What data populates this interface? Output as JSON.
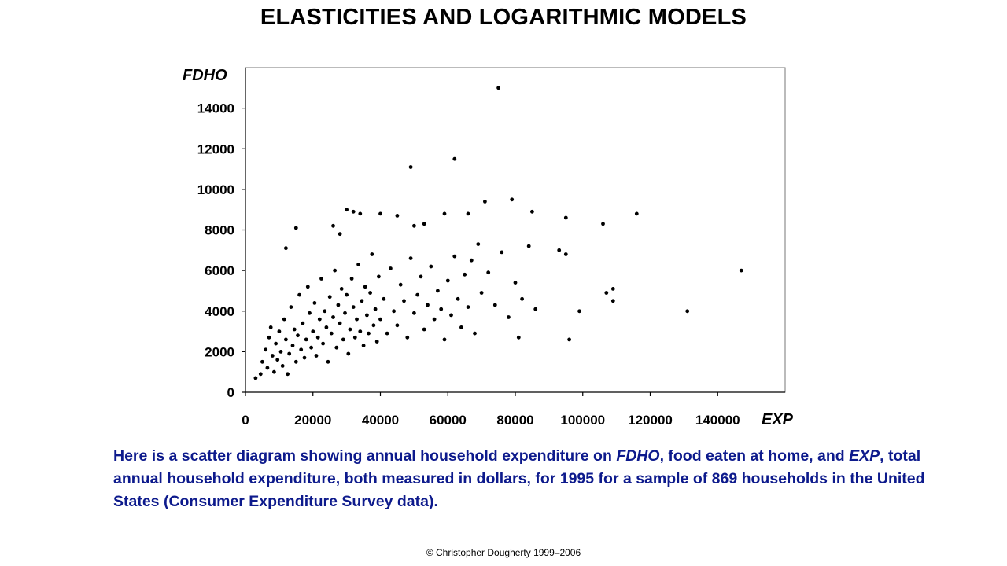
{
  "slide": {
    "title": "ELASTICITIES AND LOGARITHMIC MODELS",
    "caption": {
      "p1": "Here is a scatter diagram showing annual household expenditure on ",
      "t1": "FDHO",
      "p2": ", food eaten at home, and ",
      "t2": "EXP",
      "p3": ", total annual household expenditure, both measured in dollars, for 1995 for a sample of 869 households in the United States (Consumer Expenditure Survey data)."
    },
    "footer": "© Christopher Dougherty 1999–2006"
  },
  "colors": {
    "points": "#000000",
    "caption": "#0d1a8c"
  },
  "chart_data": {
    "type": "scatter",
    "xlabel": "EXP",
    "ylabel": "FDHO",
    "xlim": [
      0,
      160000
    ],
    "ylim": [
      0,
      16000
    ],
    "xticks": [
      0,
      20000,
      40000,
      60000,
      80000,
      100000,
      120000,
      140000
    ],
    "yticks": [
      0,
      2000,
      4000,
      6000,
      8000,
      10000,
      12000,
      14000
    ],
    "grid": false,
    "series": [
      {
        "points": [
          [
            3000,
            700
          ],
          [
            4500,
            900
          ],
          [
            5000,
            1500
          ],
          [
            6000,
            2100
          ],
          [
            6500,
            1200
          ],
          [
            7000,
            2700
          ],
          [
            7500,
            3200
          ],
          [
            8000,
            1800
          ],
          [
            8500,
            1000
          ],
          [
            9000,
            2400
          ],
          [
            9500,
            1600
          ],
          [
            10000,
            3000
          ],
          [
            10500,
            2000
          ],
          [
            11000,
            1300
          ],
          [
            11500,
            3600
          ],
          [
            12000,
            2600
          ],
          [
            12500,
            900
          ],
          [
            13000,
            1900
          ],
          [
            13500,
            4200
          ],
          [
            14000,
            2300
          ],
          [
            14500,
            3100
          ],
          [
            15000,
            1500
          ],
          [
            15500,
            2800
          ],
          [
            16000,
            4800
          ],
          [
            16500,
            2100
          ],
          [
            17000,
            3400
          ],
          [
            17500,
            1700
          ],
          [
            18000,
            2600
          ],
          [
            18500,
            5200
          ],
          [
            19000,
            3900
          ],
          [
            19500,
            2200
          ],
          [
            20000,
            3000
          ],
          [
            20500,
            4400
          ],
          [
            21000,
            1800
          ],
          [
            21500,
            2700
          ],
          [
            22000,
            3600
          ],
          [
            22500,
            5600
          ],
          [
            23000,
            2400
          ],
          [
            23500,
            4000
          ],
          [
            24000,
            3200
          ],
          [
            24500,
            1500
          ],
          [
            25000,
            4700
          ],
          [
            25500,
            2900
          ],
          [
            26000,
            3700
          ],
          [
            26500,
            6000
          ],
          [
            27000,
            2200
          ],
          [
            27500,
            4300
          ],
          [
            28000,
            3400
          ],
          [
            28500,
            5100
          ],
          [
            29000,
            2600
          ],
          [
            29500,
            3900
          ],
          [
            30000,
            4800
          ],
          [
            30500,
            1900
          ],
          [
            31000,
            3100
          ],
          [
            31500,
            5600
          ],
          [
            32000,
            4200
          ],
          [
            32500,
            2700
          ],
          [
            33000,
            3600
          ],
          [
            33500,
            6300
          ],
          [
            34000,
            3000
          ],
          [
            34500,
            4500
          ],
          [
            35000,
            2300
          ],
          [
            35500,
            5200
          ],
          [
            36000,
            3800
          ],
          [
            36500,
            2900
          ],
          [
            37000,
            4900
          ],
          [
            37500,
            6800
          ],
          [
            38000,
            3300
          ],
          [
            38500,
            4100
          ],
          [
            39000,
            2500
          ],
          [
            39500,
            5700
          ],
          [
            40000,
            3600
          ],
          [
            41000,
            4600
          ],
          [
            42000,
            2900
          ],
          [
            43000,
            6100
          ],
          [
            44000,
            4000
          ],
          [
            45000,
            3300
          ],
          [
            46000,
            5300
          ],
          [
            47000,
            4500
          ],
          [
            48000,
            2700
          ],
          [
            49000,
            6600
          ],
          [
            50000,
            3900
          ],
          [
            51000,
            4800
          ],
          [
            52000,
            5700
          ],
          [
            53000,
            3100
          ],
          [
            54000,
            4300
          ],
          [
            55000,
            6200
          ],
          [
            56000,
            3600
          ],
          [
            57000,
            5000
          ],
          [
            58000,
            4100
          ],
          [
            59000,
            2600
          ],
          [
            60000,
            5500
          ],
          [
            61000,
            3800
          ],
          [
            62000,
            6700
          ],
          [
            63000,
            4600
          ],
          [
            64000,
            3200
          ],
          [
            65000,
            5800
          ],
          [
            66000,
            4200
          ],
          [
            67000,
            6500
          ],
          [
            68000,
            2900
          ],
          [
            69000,
            7300
          ],
          [
            70000,
            4900
          ],
          [
            72000,
            5900
          ],
          [
            74000,
            4300
          ],
          [
            76000,
            6900
          ],
          [
            78000,
            3700
          ],
          [
            80000,
            5400
          ],
          [
            82000,
            4600
          ],
          [
            84000,
            7200
          ],
          [
            86000,
            4100
          ],
          [
            81000,
            2700
          ],
          [
            96000,
            2600
          ],
          [
            99000,
            4000
          ],
          [
            107000,
            4900
          ],
          [
            109000,
            4500
          ],
          [
            109000,
            5100
          ],
          [
            131000,
            4000
          ],
          [
            147000,
            6000
          ],
          [
            75000,
            15000
          ],
          [
            49000,
            11100
          ],
          [
            62000,
            11500
          ],
          [
            79000,
            9500
          ],
          [
            71000,
            9400
          ],
          [
            85000,
            8900
          ],
          [
            95000,
            8600
          ],
          [
            106000,
            8300
          ],
          [
            116000,
            8800
          ],
          [
            30000,
            9000
          ],
          [
            32000,
            8900
          ],
          [
            34000,
            8800
          ],
          [
            40000,
            8800
          ],
          [
            45000,
            8700
          ],
          [
            50000,
            8200
          ],
          [
            53000,
            8300
          ],
          [
            59000,
            8800
          ],
          [
            66000,
            8800
          ],
          [
            93000,
            7000
          ],
          [
            95000,
            6800
          ],
          [
            15000,
            8100
          ],
          [
            26000,
            8200
          ],
          [
            28000,
            7800
          ],
          [
            12000,
            7100
          ]
        ]
      }
    ]
  }
}
